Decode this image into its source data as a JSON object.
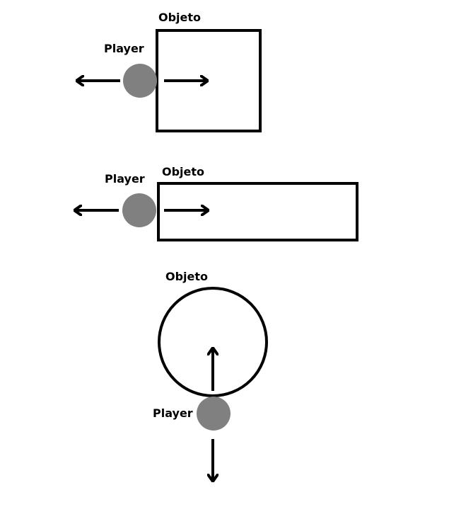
{
  "colors": {
    "background": "#ffffff",
    "stroke": "#000000",
    "player_fill": "#808080"
  },
  "scenes": [
    {
      "object_shape": "square",
      "object_label": "Objeto",
      "player_label": "Player",
      "arrows": [
        "left",
        "right"
      ]
    },
    {
      "object_shape": "wide-rectangle",
      "object_label": "Objeto",
      "player_label": "Player",
      "arrows": [
        "left",
        "right"
      ]
    },
    {
      "object_shape": "circle",
      "object_label": "Objeto",
      "player_label": "Player",
      "arrows": [
        "up",
        "down"
      ]
    }
  ]
}
